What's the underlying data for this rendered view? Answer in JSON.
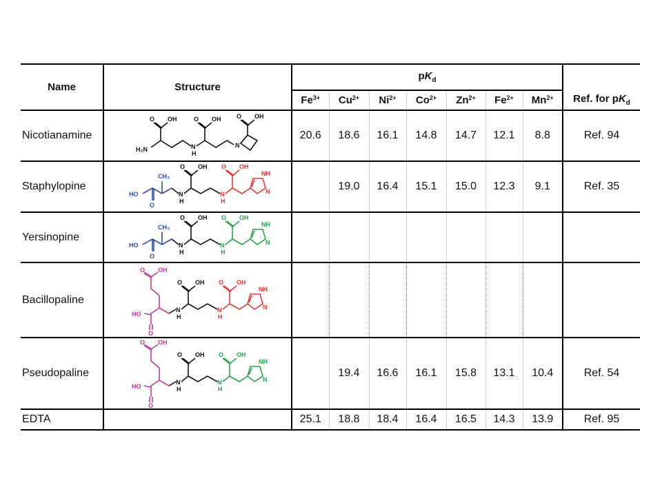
{
  "headers": {
    "name": "Name",
    "structure": "Structure",
    "pkd_group_p": "p",
    "pkd_group_k": "K",
    "pkd_group_sub": "d",
    "ref_prefix": "Ref. for p",
    "ref_k": "K",
    "ref_sub": "d",
    "ions": [
      {
        "el": "Fe",
        "charge": "3+"
      },
      {
        "el": "Cu",
        "charge": "2+"
      },
      {
        "el": "Ni",
        "charge": "2+"
      },
      {
        "el": "Co",
        "charge": "2+"
      },
      {
        "el": "Zn",
        "charge": "2+"
      },
      {
        "el": "Fe",
        "charge": "2+"
      },
      {
        "el": "Mn",
        "charge": "2+"
      }
    ]
  },
  "rows": [
    {
      "name": "Nicotianamine",
      "values": [
        "20.6",
        "18.6",
        "16.1",
        "14.8",
        "14.7",
        "12.1",
        "8.8"
      ],
      "ref": "Ref. 94"
    },
    {
      "name": "Staphylopine",
      "values": [
        "",
        "19.0",
        "16.4",
        "15.1",
        "15.0",
        "12.3",
        "9.1"
      ],
      "ref": "Ref. 35"
    },
    {
      "name": "Yersinopine",
      "values": [
        "",
        "",
        "",
        "",
        "",
        "",
        ""
      ],
      "ref": ""
    },
    {
      "name": "Bacillopaline",
      "values": [
        "",
        "",
        "",
        "",
        "",
        "",
        ""
      ],
      "ref": ""
    },
    {
      "name": "Pseudopaline",
      "values": [
        "",
        "19.4",
        "16.6",
        "16.1",
        "15.8",
        "13.1",
        "10.4"
      ],
      "ref": "Ref. 54"
    },
    {
      "name": "EDTA",
      "values": [
        "25.1",
        "18.8",
        "18.4",
        "16.4",
        "16.5",
        "14.3",
        "13.9"
      ],
      "ref": "Ref. 95"
    }
  ],
  "structure_labels": {
    "o": "O",
    "oh": "OH",
    "nh": "NH",
    "n": "N",
    "h": "H",
    "h2n": "H₂N",
    "ho": "HO",
    "ch3": "CH₃"
  },
  "colors": {
    "black": "#111111",
    "blue": "#2f4ea0",
    "red": "#e53935",
    "green": "#2aa24a",
    "magenta": "#c0399a"
  }
}
